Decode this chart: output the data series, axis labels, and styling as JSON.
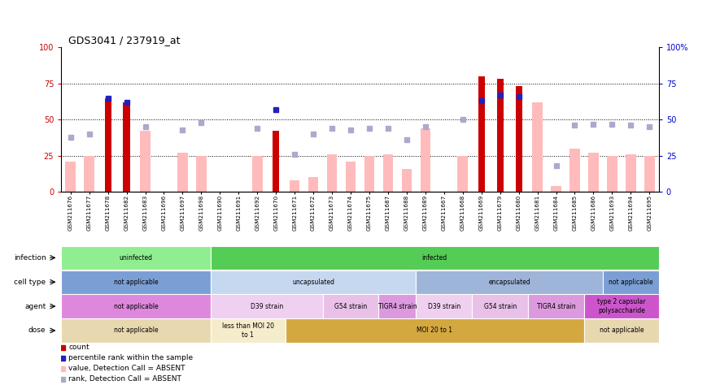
{
  "title": "GDS3041 / 237919_at",
  "samples": [
    "GSM211676",
    "GSM211677",
    "GSM211678",
    "GSM211682",
    "GSM211683",
    "GSM211696",
    "GSM211697",
    "GSM211698",
    "GSM211690",
    "GSM211691",
    "GSM211692",
    "GSM211670",
    "GSM211671",
    "GSM211672",
    "GSM211673",
    "GSM211674",
    "GSM211675",
    "GSM211687",
    "GSM211688",
    "GSM211689",
    "GSM211667",
    "GSM211668",
    "GSM211669",
    "GSM211679",
    "GSM211680",
    "GSM211681",
    "GSM211684",
    "GSM211685",
    "GSM211686",
    "GSM211693",
    "GSM211694",
    "GSM211695"
  ],
  "count_values": [
    null,
    null,
    65,
    62,
    null,
    null,
    null,
    null,
    null,
    null,
    null,
    42,
    null,
    null,
    null,
    null,
    null,
    null,
    null,
    null,
    null,
    null,
    80,
    78,
    73,
    null,
    null,
    null,
    null,
    null,
    null,
    null
  ],
  "percentile_values": [
    null,
    null,
    65,
    62,
    null,
    null,
    null,
    null,
    null,
    null,
    null,
    57,
    null,
    null,
    null,
    null,
    null,
    null,
    null,
    null,
    null,
    null,
    63,
    67,
    66,
    null,
    null,
    null,
    null,
    null,
    null,
    null
  ],
  "value_absent": [
    21,
    25,
    null,
    null,
    42,
    null,
    27,
    25,
    null,
    null,
    25,
    null,
    8,
    10,
    26,
    21,
    25,
    26,
    16,
    44,
    null,
    25,
    null,
    null,
    null,
    62,
    4,
    30,
    27,
    25,
    26,
    25
  ],
  "rank_absent": [
    38,
    40,
    null,
    null,
    45,
    null,
    43,
    48,
    null,
    null,
    44,
    null,
    26,
    40,
    44,
    43,
    44,
    44,
    36,
    45,
    null,
    50,
    null,
    null,
    null,
    null,
    18,
    46,
    47,
    47,
    46,
    45
  ],
  "infection_regions": [
    {
      "label": "uninfected",
      "start": 0,
      "end": 7,
      "color": "#90ee90"
    },
    {
      "label": "infected",
      "start": 8,
      "end": 31,
      "color": "#55cc55"
    }
  ],
  "cell_type_regions": [
    {
      "label": "not applicable",
      "start": 0,
      "end": 7,
      "color": "#7b9fd4"
    },
    {
      "label": "uncapsulated",
      "start": 8,
      "end": 18,
      "color": "#c5d8f0"
    },
    {
      "label": "encapsulated",
      "start": 19,
      "end": 28,
      "color": "#9eb4d9"
    },
    {
      "label": "not applicable",
      "start": 29,
      "end": 31,
      "color": "#7b9fd4"
    }
  ],
  "agent_regions": [
    {
      "label": "not applicable",
      "start": 0,
      "end": 7,
      "color": "#dd88dd"
    },
    {
      "label": "D39 strain",
      "start": 8,
      "end": 13,
      "color": "#f0d0f0"
    },
    {
      "label": "G54 strain",
      "start": 14,
      "end": 16,
      "color": "#e8c0e8"
    },
    {
      "label": "TIGR4 strain",
      "start": 17,
      "end": 18,
      "color": "#dd99dd"
    },
    {
      "label": "D39 strain",
      "start": 19,
      "end": 21,
      "color": "#f0d0f0"
    },
    {
      "label": "G54 strain",
      "start": 22,
      "end": 24,
      "color": "#e8c0e8"
    },
    {
      "label": "TIGR4 strain",
      "start": 25,
      "end": 27,
      "color": "#dd99dd"
    },
    {
      "label": "type 2 capsular\npolysaccharide",
      "start": 28,
      "end": 31,
      "color": "#cc55cc"
    }
  ],
  "dose_regions": [
    {
      "label": "not applicable",
      "start": 0,
      "end": 7,
      "color": "#e8d8b0"
    },
    {
      "label": "less than MOI 20\nto 1",
      "start": 8,
      "end": 11,
      "color": "#f5eccc"
    },
    {
      "label": "MOI 20 to 1",
      "start": 12,
      "end": 27,
      "color": "#d4a840"
    },
    {
      "label": "not applicable",
      "start": 28,
      "end": 31,
      "color": "#e8d8b0"
    }
  ],
  "ylim": [
    0,
    100
  ],
  "yticks": [
    0,
    25,
    50,
    75,
    100
  ],
  "bar_width": 0.55
}
